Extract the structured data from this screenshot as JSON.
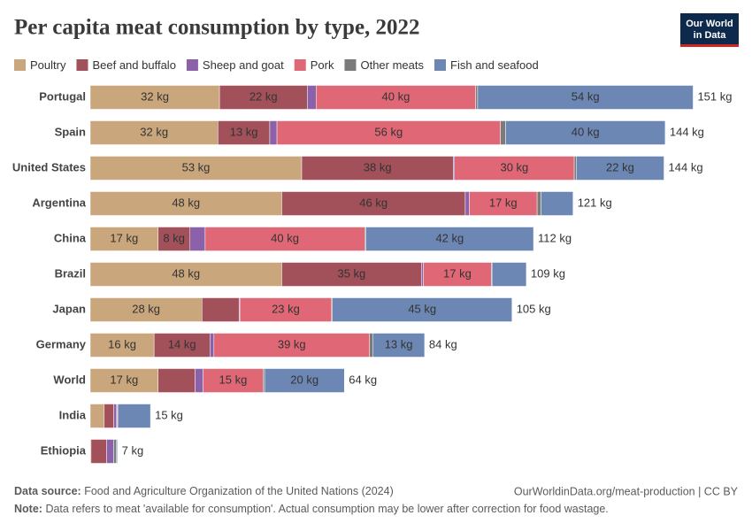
{
  "chart_data": {
    "type": "stacked-bar-horizontal",
    "title": "Per capita meat consumption by type, 2022",
    "logo": [
      "Our World",
      "in Data"
    ],
    "categories": [
      "Portugal",
      "Spain",
      "United States",
      "Argentina",
      "China",
      "Brazil",
      "Japan",
      "Germany",
      "World",
      "India",
      "Ethiopia"
    ],
    "series": [
      {
        "name": "Poultry",
        "color": "#c9a67c",
        "values": [
          32.4,
          32,
          53,
          48,
          17,
          48,
          28,
          16,
          17,
          3.5,
          0.2
        ],
        "value_labels": [
          "32 kg",
          "32 kg",
          "53 kg",
          "48 kg",
          "17 kg",
          "48 kg",
          "28 kg",
          "16 kg",
          "17 kg",
          null,
          null
        ]
      },
      {
        "name": "Beef and buffalo",
        "color": "#a2505a",
        "values": [
          22,
          13,
          38,
          46,
          8,
          35,
          9.3,
          14,
          9.3,
          2.4,
          3.9
        ],
        "value_labels": [
          "22 kg",
          "13 kg",
          "38 kg",
          "46 kg",
          "8 kg",
          "35 kg",
          null,
          "14 kg",
          null,
          null,
          null
        ]
      },
      {
        "name": "Sheep and goat",
        "color": "#8b62aa",
        "values": [
          2.2,
          1.8,
          0.3,
          1,
          3.8,
          0.5,
          0.2,
          1,
          2,
          0.7,
          1.8
        ],
        "value_labels": [
          null,
          null,
          null,
          null,
          null,
          null,
          null,
          null,
          null,
          null,
          null
        ]
      },
      {
        "name": "Pork",
        "color": "#e06775",
        "values": [
          40,
          56,
          30,
          17,
          40,
          17,
          23,
          39,
          15,
          0.2,
          0
        ],
        "value_labels": [
          "40 kg",
          "56 kg",
          "30 kg",
          "17 kg",
          "40 kg",
          "17 kg",
          "23 kg",
          "39 kg",
          "15 kg",
          null,
          null
        ]
      },
      {
        "name": "Other meats",
        "color": "#7b7b7b",
        "values": [
          0.5,
          1.3,
          0.5,
          1,
          0.3,
          0.2,
          0.2,
          0.8,
          0.4,
          0.1,
          0.6
        ],
        "value_labels": [
          null,
          null,
          null,
          null,
          null,
          null,
          null,
          null,
          null,
          null,
          null
        ]
      },
      {
        "name": "Fish and seafood",
        "color": "#6d87b4",
        "values": [
          54,
          40,
          22,
          8,
          42,
          8.6,
          45,
          13,
          20,
          8.2,
          0.3
        ],
        "value_labels": [
          "54 kg",
          "40 kg",
          "22 kg",
          null,
          "42 kg",
          null,
          "45 kg",
          "13 kg",
          "20 kg",
          null,
          null
        ]
      }
    ],
    "totals": [
      151,
      144,
      144,
      121,
      112,
      109,
      105,
      84,
      64,
      15,
      7
    ],
    "total_labels": [
      "151 kg",
      "144 kg",
      "144 kg",
      "121 kg",
      "112 kg",
      "109 kg",
      "105 kg",
      "84 kg",
      "64 kg",
      "15 kg",
      "7 kg"
    ],
    "source_label": "Data source:",
    "source": "Food and Agriculture Organization of the United Nations (2024)",
    "url": "OurWorldinData.org/meat-production | CC BY",
    "note_label": "Note:",
    "note": "Data refers to meat 'available for consumption'. Actual consumption may be lower after correction for food wastage."
  }
}
